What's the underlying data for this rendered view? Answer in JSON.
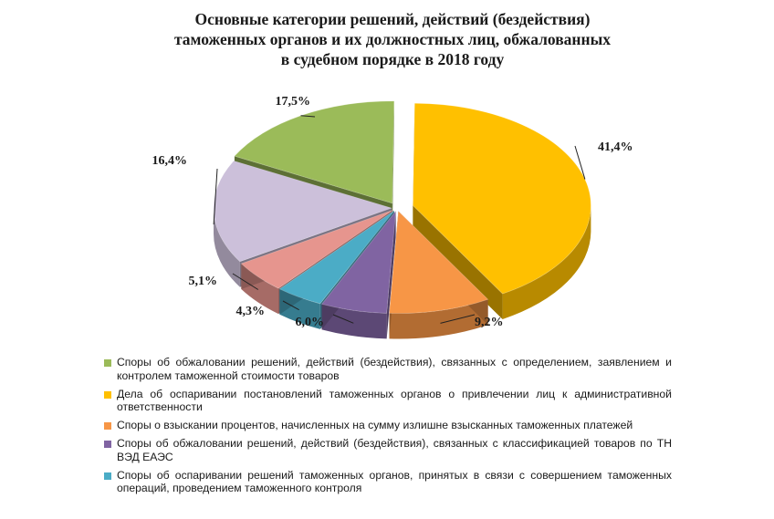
{
  "chart_data": {
    "type": "pie",
    "title_lines": [
      "Основные категории решений, действий (бездействия)",
      "таможенных органов и их должностных лиц, обжалованных",
      "в судебном порядке в 2018 году"
    ],
    "slices": [
      {
        "label": "Дела об оспаривании постановлений таможенных органов о привлечении лиц к административной ответственности",
        "value": 41.4,
        "value_label": "41,4%",
        "color": "#FFC000"
      },
      {
        "label": "Споры о взыскании процентов, начисленных на сумму излишне взысканных таможенных платежей",
        "value": 9.2,
        "value_label": "9,2%",
        "color": "#F79646"
      },
      {
        "label": "Споры об обжаловании решений, действий (бездействия), связанных с классификацией товаров по ТН ВЭД ЕАЭС",
        "value": 6.0,
        "value_label": "6,0%",
        "color": "#8064A2"
      },
      {
        "label": "Споры об оспаривании решений таможенных органов, принятых в связи с  совершением таможенных операций, проведением таможенного контроля",
        "value": 4.3,
        "value_label": "4,3%",
        "color": "#4BACC6"
      },
      {
        "label": "",
        "value": 5.1,
        "value_label": "5,1%",
        "color": "#E6958E"
      },
      {
        "label": "",
        "value": 16.4,
        "value_label": "16,4%",
        "color": "#CCC0DA"
      },
      {
        "label": "Споры об обжаловании решений, действий (бездействия), связанных с определением, заявлением и контролем таможенной стоимости товаров",
        "value": 17.5,
        "value_label": "17,5%",
        "color": "#9BBB59"
      }
    ],
    "legend": [
      {
        "text": "Споры об обжаловании решений, действий (бездействия), связанных с определением, заявлением и контролем таможенной стоимости товаров",
        "color": "#9BBB59"
      },
      {
        "text": "Дела об оспаривании постановлений таможенных органов о привлечении лиц к административной ответственности",
        "color": "#FFC000"
      },
      {
        "text": "Споры о взыскании процентов, начисленных на сумму излишне взысканных таможенных платежей",
        "color": "#F79646"
      },
      {
        "text": "Споры об обжаловании решений, действий (бездействия), связанных с классификацией товаров по ТН ВЭД ЕАЭС",
        "color": "#8064A2"
      },
      {
        "text": "Споры об оспаривании решений таможенных органов, принятых в связи с  совершением таможенных операций, проведением таможенного контроля",
        "color": "#4BACC6"
      }
    ],
    "legend_placement": "bottom"
  }
}
